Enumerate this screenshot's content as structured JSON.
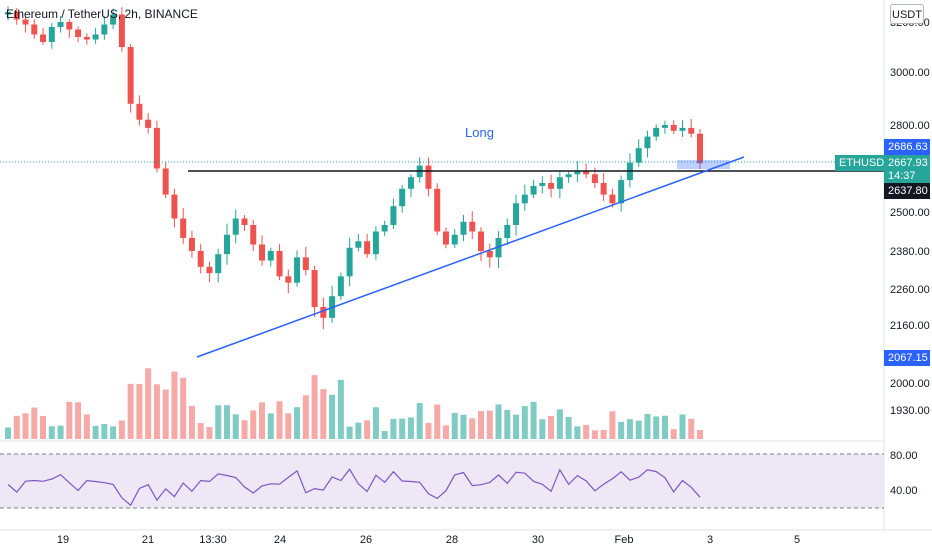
{
  "header": {
    "title": "Ethereum / TetherUS, 2h, BINANCE",
    "currency_button": "USDT"
  },
  "annotations": {
    "long_label": "Long"
  },
  "price_scale": {
    "labels": [
      "3200.00",
      "3000.00",
      "2800.00",
      "2500.00",
      "2380.00",
      "2260.00",
      "2160.00",
      "2000.00",
      "1930.00"
    ],
    "tags": [
      {
        "name": "last-price-tag",
        "value": "2686.63",
        "color": "#2962ff"
      },
      {
        "name": "current-price-tag",
        "value": "2667.93",
        "countdown": "14:37",
        "color": "#26a69a"
      },
      {
        "name": "horizontal-line-tag",
        "value": "2637.80",
        "color": "#131722"
      },
      {
        "name": "trendline-start-tag",
        "value": "2067.15",
        "color": "#2962ff"
      }
    ],
    "symbol_tag": "ETHUSDT"
  },
  "rsi_scale": {
    "labels": [
      "80.00",
      "40.00"
    ]
  },
  "time_axis": {
    "labels": [
      "19",
      "21",
      "13:30",
      "24",
      "26",
      "28",
      "30",
      "Feb",
      "3",
      "5"
    ]
  },
  "colors": {
    "up": "#26a69a",
    "down": "#ef5350",
    "up_volume": "#80cbc4",
    "down_volume": "#f7a9a7",
    "trendline": "#2962ff",
    "rsi_line": "#7e57c2",
    "rsi_band": "#ede7f6"
  },
  "chart_data": {
    "type": "candlestick",
    "symbol": "ETHUSDT",
    "interval": "2h",
    "exchange": "BINANCE",
    "last_price": 2667.93,
    "horizontal_level": 2637.8,
    "trendline_start": 2067.15,
    "close_series": [
      3240,
      3210,
      3190,
      3150,
      3120,
      3180,
      3200,
      3170,
      3140,
      3130,
      3150,
      3190,
      3230,
      3100,
      2880,
      2820,
      2790,
      2650,
      2560,
      2480,
      2420,
      2380,
      2330,
      2310,
      2370,
      2430,
      2480,
      2460,
      2400,
      2350,
      2380,
      2300,
      2280,
      2360,
      2320,
      2210,
      2180,
      2240,
      2300,
      2390,
      2410,
      2370,
      2440,
      2460,
      2520,
      2580,
      2620,
      2660,
      2580,
      2440,
      2400,
      2430,
      2470,
      2440,
      2380,
      2360,
      2420,
      2460,
      2530,
      2560,
      2590,
      2600,
      2580,
      2620,
      2630,
      2640,
      2630,
      2600,
      2560,
      2530,
      2610,
      2670,
      2720,
      2760,
      2790,
      2800,
      2780,
      2790,
      2770,
      2667.93
    ],
    "rsi_levels": [
      80,
      40
    ]
  }
}
